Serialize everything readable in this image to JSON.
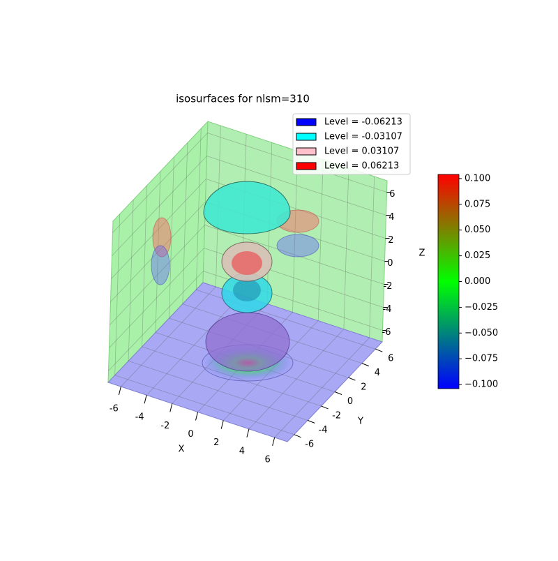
{
  "chart_data": {
    "type": "isosurface3d",
    "title": "isosurfaces for nlsm=310",
    "xlabel": "X",
    "ylabel": "Y",
    "zlabel": "Z",
    "xlim": [
      -7,
      7
    ],
    "ylim": [
      -7,
      7
    ],
    "zlim": [
      -7,
      7
    ],
    "xticks": [
      -6,
      -4,
      -2,
      0,
      2,
      4,
      6
    ],
    "yticks": [
      -6,
      -4,
      -2,
      0,
      2,
      4,
      6
    ],
    "zticks": [
      -6,
      -4,
      -2,
      0,
      2,
      4,
      6
    ],
    "grid": true,
    "legend": "upper right",
    "series": [
      {
        "name": "Level = -0.06213",
        "color": "#0000ff"
      },
      {
        "name": "Level = -0.03107",
        "color": "#00ffff"
      },
      {
        "name": "Level = 0.03107",
        "color": "#ffc0cb"
      },
      {
        "name": "Level = 0.06213",
        "color": "#ff0000"
      }
    ],
    "colorbar": {
      "clim": [
        -0.104,
        0.104
      ],
      "colors": [
        "#0000ff",
        "#00ff00",
        "#ff0000"
      ],
      "ticks": [
        {
          "value": -0.1,
          "label": "−0.100"
        },
        {
          "value": -0.075,
          "label": "−0.075"
        },
        {
          "value": -0.05,
          "label": "−0.050"
        },
        {
          "value": -0.025,
          "label": "−0.025"
        },
        {
          "value": 0,
          "label": "0.000"
        },
        {
          "value": 0.025,
          "label": "0.025"
        },
        {
          "value": 0.05,
          "label": "0.050"
        },
        {
          "value": 0.075,
          "label": "0.075"
        },
        {
          "value": 0.1,
          "label": "0.100"
        }
      ]
    }
  }
}
